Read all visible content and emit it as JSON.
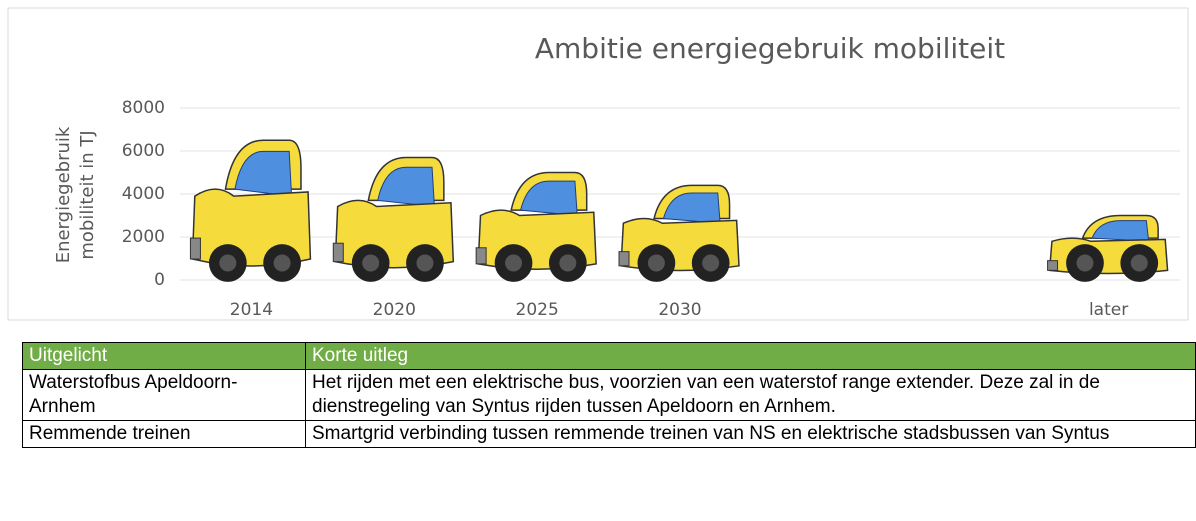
{
  "chart_data": {
    "type": "pictograph",
    "title": "Ambitie energiegebruik mobiliteit",
    "ylabel": [
      "Energiegebruik",
      "mobiliteit in TJ"
    ],
    "categories": [
      "2014",
      "2020",
      "2025",
      "2030",
      null,
      null,
      "later"
    ],
    "values": [
      6500,
      5700,
      5000,
      4400,
      null,
      null,
      3000
    ],
    "color": "#f5dc3c",
    "ylim": [
      0,
      8000
    ],
    "yticks": [
      0,
      2000,
      4000,
      6000,
      8000
    ],
    "grid": true
  },
  "table": {
    "header": [
      "Uitgelicht",
      "Korte uitleg"
    ],
    "rows": [
      [
        "Waterstofbus Apeldoorn-Arnhem",
        "Het rijden met een elektrische bus, voorzien van een waterstof range extender. Deze zal in de dienstregeling van Syntus rijden tussen Apeldoorn en Arnhem."
      ],
      [
        "Remmende treinen",
        "Smartgrid verbinding tussen remmende treinen van NS en elektrische stadsbussen van Syntus"
      ]
    ]
  }
}
